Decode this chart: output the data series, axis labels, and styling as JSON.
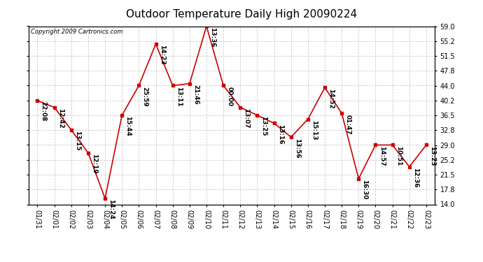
{
  "title": "Outdoor Temperature Daily High 20090224",
  "copyright": "Copyright 2009 Cartronics.com",
  "x_labels": [
    "01/31",
    "02/01",
    "02/02",
    "02/03",
    "02/04",
    "02/05",
    "02/06",
    "02/07",
    "02/08",
    "02/09",
    "02/10",
    "02/11",
    "02/12",
    "02/13",
    "02/14",
    "02/15",
    "02/16",
    "02/17",
    "02/18",
    "02/19",
    "02/20",
    "02/21",
    "02/22",
    "02/23"
  ],
  "y_values": [
    40.2,
    38.5,
    32.8,
    27.0,
    15.5,
    36.5,
    44.0,
    54.5,
    44.0,
    44.5,
    59.0,
    44.0,
    38.5,
    36.5,
    34.5,
    31.0,
    35.5,
    43.5,
    37.0,
    20.5,
    29.0,
    29.0,
    23.5,
    29.0
  ],
  "point_labels": [
    "22:08",
    "12:42",
    "13:15",
    "12:19",
    "14:24",
    "15:44",
    "25:59",
    "14:23",
    "13:11",
    "21:46",
    "13:36",
    "00:00",
    "13:07",
    "13:25",
    "13:16",
    "13:56",
    "15:13",
    "14:52",
    "01:47",
    "16:30",
    "14:57",
    "10:51",
    "12:36",
    "13:23"
  ],
  "ylim": [
    14.0,
    59.0
  ],
  "yticks": [
    14.0,
    17.8,
    21.5,
    25.2,
    29.0,
    32.8,
    36.5,
    40.2,
    44.0,
    47.8,
    51.5,
    55.2,
    59.0
  ],
  "ytick_labels": [
    "14.0",
    "17.8",
    "21.5",
    "25.2",
    "29.0",
    "32.8",
    "36.5",
    "40.2",
    "44.0",
    "47.8",
    "51.5",
    "55.2",
    "59.0"
  ],
  "line_color": "#cc0000",
  "marker_color": "#cc0000",
  "bg_color": "#ffffff",
  "plot_bg_color": "#ffffff",
  "grid_color": "#cccccc",
  "title_fontsize": 11,
  "label_fontsize": 7,
  "point_label_fontsize": 6.5
}
